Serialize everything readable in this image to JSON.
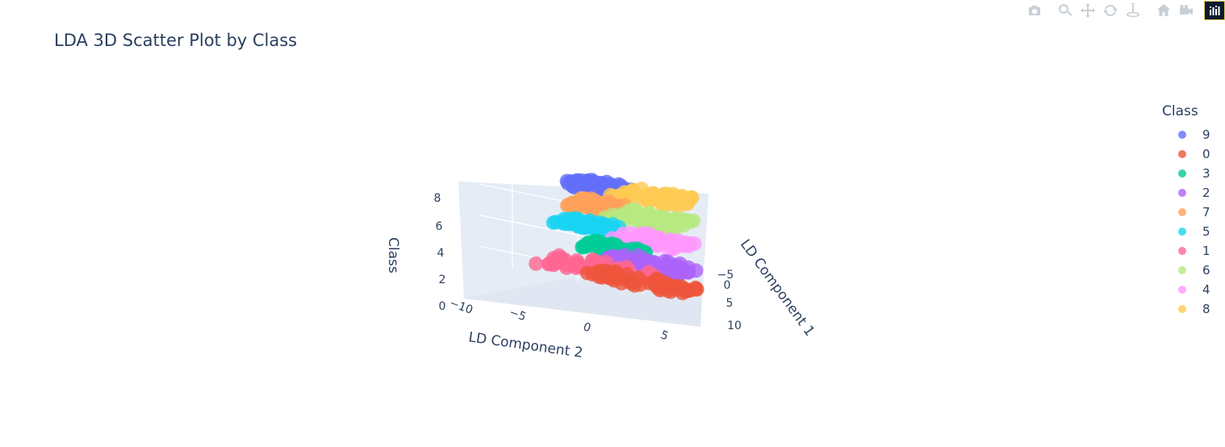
{
  "toolbar": {
    "buttons": [
      {
        "name": "download-plot-button",
        "icon": "camera-icon"
      },
      {
        "name": "zoom-button",
        "icon": "zoom-icon"
      },
      {
        "name": "pan-button",
        "icon": "pan-icon"
      },
      {
        "name": "orbit-rotation-button",
        "icon": "orbit-icon"
      },
      {
        "name": "turntable-rotation-button",
        "icon": "turntable-icon"
      },
      {
        "name": "reset-camera-default-button",
        "icon": "home-icon"
      },
      {
        "name": "reset-camera-last-save-button",
        "icon": "camera-reset-icon"
      },
      {
        "name": "plotly-logo-button",
        "icon": "plotly-logo-icon"
      }
    ]
  },
  "chart_data": {
    "type": "scatter",
    "subtype": "scatter3d",
    "title": "LDA 3D Scatter Plot by Class",
    "xlabel": "LD Component 1",
    "ylabel": "LD Component 2",
    "zlabel": "Class",
    "x_ticks": [
      "−5",
      "0",
      "5",
      "10"
    ],
    "y_ticks": [
      "−10",
      "−5",
      "0",
      "5"
    ],
    "z_ticks": [
      "0",
      "2",
      "4",
      "6",
      "8"
    ],
    "xlim": [
      -8,
      12
    ],
    "ylim": [
      -10,
      7
    ],
    "zlim": [
      0,
      9
    ],
    "grid": true,
    "legend_title": "Class",
    "legend_position": "right",
    "series": [
      {
        "name": "9",
        "color": "#636efa",
        "z": 9,
        "x_range": [
          -7,
          2
        ],
        "y_range": [
          -3,
          2
        ]
      },
      {
        "name": "0",
        "color": "#ef553b",
        "z": 0,
        "x_range": [
          -1,
          7
        ],
        "y_range": [
          -2,
          7
        ]
      },
      {
        "name": "3",
        "color": "#00cc96",
        "z": 3,
        "x_range": [
          -4,
          4
        ],
        "y_range": [
          -2,
          3
        ]
      },
      {
        "name": "2",
        "color": "#ab63fa",
        "z": 2,
        "x_range": [
          -3,
          6
        ],
        "y_range": [
          0,
          7
        ]
      },
      {
        "name": "7",
        "color": "#ffa15a",
        "z": 7,
        "x_range": [
          -6,
          3
        ],
        "y_range": [
          -3,
          1
        ]
      },
      {
        "name": "5",
        "color": "#19d3f3",
        "z": 5,
        "x_range": [
          -5,
          2
        ],
        "y_range": [
          -4,
          1
        ]
      },
      {
        "name": "1",
        "color": "#ff6692",
        "z": 1,
        "x_range": [
          -8,
          4
        ],
        "y_range": [
          -5,
          4
        ]
      },
      {
        "name": "6",
        "color": "#b6e880",
        "z": 6,
        "x_range": [
          -2,
          10
        ],
        "y_range": [
          0,
          6
        ]
      },
      {
        "name": "4",
        "color": "#ff97ff",
        "z": 4,
        "x_range": [
          -1,
          9
        ],
        "y_range": [
          0,
          6
        ]
      },
      {
        "name": "8",
        "color": "#fecb52",
        "z": 8,
        "x_range": [
          -1,
          12
        ],
        "y_range": [
          0,
          6
        ]
      }
    ]
  }
}
